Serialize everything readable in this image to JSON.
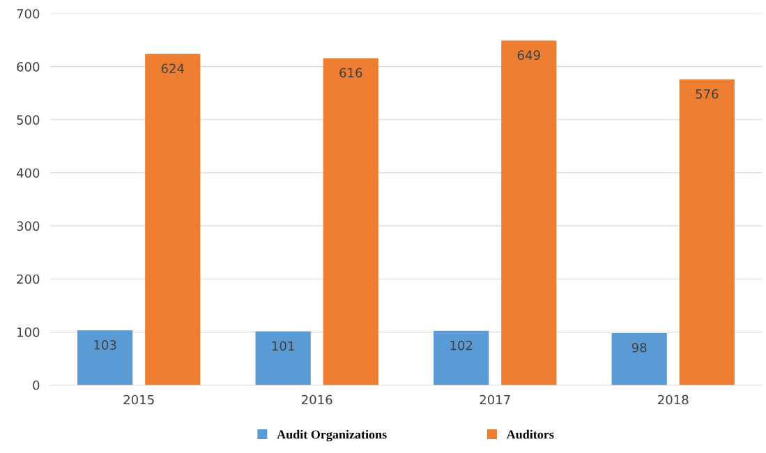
{
  "chart_data": {
    "type": "bar",
    "categories": [
      "2015",
      "2016",
      "2017",
      "2018"
    ],
    "series": [
      {
        "name": "Audit Organizations",
        "color": "#5b9bd5",
        "values": [
          103,
          101,
          102,
          98
        ]
      },
      {
        "name": "Auditors",
        "color": "#ed7d31",
        "values": [
          624,
          616,
          649,
          576
        ]
      }
    ],
    "ylim": [
      0,
      700
    ],
    "yticks": [
      0,
      100,
      200,
      300,
      400,
      500,
      600,
      700
    ],
    "grid": "y",
    "legend": "bottom",
    "data_labels": true
  }
}
